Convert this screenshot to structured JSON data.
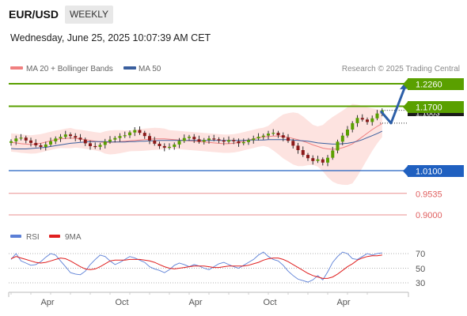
{
  "header": {
    "symbol": "EUR/USD",
    "timeframe": "WEEKLY",
    "datetime": "Wednesday, June 25, 2025 10:07:39 AM CET"
  },
  "price_panel": {
    "legend": [
      {
        "label": "MA 20 + Bollinger Bands",
        "color": "#f08080"
      },
      {
        "label": "MA 50",
        "color": "#3a5f9e"
      }
    ],
    "credit": "Research © 2025 Trading Central",
    "levels": [
      {
        "value": 1.226,
        "label": "1.2260",
        "color": "#5aa000",
        "style": "box"
      },
      {
        "value": 1.17,
        "label": "1.1700",
        "color": "#5aa000",
        "style": "box"
      },
      {
        "value": 1.01,
        "label": "1.0100",
        "color": "#2060c0",
        "style": "box"
      },
      {
        "value": 0.9535,
        "label": "0.9535",
        "color": "#e06060",
        "style": "text"
      },
      {
        "value": 0.9,
        "label": "0.9000",
        "color": "#e06060",
        "style": "text"
      }
    ],
    "current_price_label": "1.1603",
    "projection_color": "#2d5fa8"
  },
  "rsi_panel": {
    "legend": [
      {
        "label": "RSI",
        "color": "#5b7fd6"
      },
      {
        "label": "9MA",
        "color": "#e02020"
      }
    ],
    "ticks": [
      "70",
      "50",
      "30"
    ]
  },
  "x_axis": {
    "labels": [
      "Apr",
      "Oct",
      "Apr",
      "Oct",
      "Apr"
    ]
  },
  "colors": {
    "bull": "#5aa000",
    "bear": "#8b1a1a",
    "band_fill": "#fde3e0"
  },
  "chart_data": [
    {
      "type": "candlestick",
      "title": "EUR/USD",
      "xlabel": "",
      "ylabel": "",
      "x_tick_labels": [
        "Apr",
        "Oct",
        "Apr",
        "Oct",
        "Apr"
      ],
      "series": [
        {
          "name": "MA 20 + Bollinger Bands",
          "values": [
            1.08,
            1.079,
            1.077,
            1.076,
            1.075,
            1.076,
            1.078,
            1.081,
            1.084,
            1.087,
            1.089,
            1.09,
            1.091,
            1.09,
            1.089,
            1.087,
            1.085,
            1.083,
            1.081,
            1.08,
            1.08,
            1.081,
            1.082,
            1.083,
            1.084,
            1.085,
            1.086,
            1.087,
            1.088,
            1.089,
            1.089,
            1.089,
            1.088,
            1.087,
            1.086,
            1.085,
            1.084,
            1.083,
            1.082,
            1.081,
            1.08,
            1.079,
            1.078,
            1.077,
            1.077,
            1.078,
            1.08,
            1.083,
            1.086,
            1.089,
            1.092,
            1.094,
            1.095,
            1.096,
            1.096,
            1.095,
            1.093,
            1.09,
            1.087,
            1.083,
            1.079,
            1.074,
            1.07,
            1.066,
            1.064,
            1.063,
            1.064,
            1.067,
            1.071,
            1.077,
            1.085,
            1.094,
            1.103,
            1.112,
            1.12,
            1.127
          ]
        },
        {
          "name": "MA 50",
          "values": [
            1.065,
            1.064,
            1.064,
            1.064,
            1.065,
            1.066,
            1.067,
            1.068,
            1.07,
            1.072,
            1.074,
            1.076,
            1.078,
            1.079,
            1.08,
            1.081,
            1.082,
            1.082,
            1.082,
            1.082,
            1.081,
            1.081,
            1.081,
            1.081,
            1.082,
            1.082,
            1.083,
            1.083,
            1.084,
            1.084,
            1.085,
            1.085,
            1.085,
            1.085,
            1.085,
            1.085,
            1.085,
            1.085,
            1.085,
            1.085,
            1.085,
            1.085,
            1.085,
            1.085,
            1.085,
            1.085,
            1.085,
            1.085,
            1.086,
            1.086,
            1.086,
            1.086,
            1.087,
            1.087,
            1.087,
            1.087,
            1.087,
            1.086,
            1.085,
            1.084,
            1.083,
            1.081,
            1.079,
            1.078,
            1.077,
            1.076,
            1.076,
            1.077,
            1.078,
            1.08,
            1.083,
            1.087,
            1.092,
            1.097,
            1.102,
            1.108
          ]
        }
      ],
      "close": [
        1.083,
        1.09,
        1.092,
        1.085,
        1.079,
        1.073,
        1.069,
        1.075,
        1.083,
        1.09,
        1.094,
        1.1,
        1.096,
        1.092,
        1.087,
        1.078,
        1.071,
        1.069,
        1.074,
        1.082,
        1.087,
        1.091,
        1.096,
        1.098,
        1.105,
        1.111,
        1.104,
        1.096,
        1.085,
        1.077,
        1.071,
        1.067,
        1.069,
        1.075,
        1.084,
        1.091,
        1.094,
        1.088,
        1.082,
        1.086,
        1.09,
        1.088,
        1.085,
        1.082,
        1.086,
        1.083,
        1.078,
        1.081,
        1.086,
        1.09,
        1.094,
        1.097,
        1.102,
        1.104,
        1.098,
        1.092,
        1.084,
        1.072,
        1.061,
        1.049,
        1.041,
        1.034,
        1.038,
        1.03,
        1.042,
        1.06,
        1.082,
        1.097,
        1.112,
        1.128,
        1.141,
        1.137,
        1.131,
        1.14,
        1.152,
        1.16
      ],
      "ylim": [
        0.88,
        1.245
      ]
    },
    {
      "type": "line",
      "title": "RSI",
      "xlabel": "",
      "ylabel": "",
      "series": [
        {
          "name": "RSI",
          "values": [
            62,
            70,
            60,
            57,
            54,
            55,
            59,
            65,
            70,
            68,
            60,
            52,
            44,
            42,
            41,
            46,
            55,
            62,
            68,
            66,
            60,
            55,
            58,
            62,
            66,
            64,
            61,
            58,
            52,
            49,
            47,
            44,
            48,
            54,
            57,
            55,
            52,
            55,
            53,
            50,
            48,
            52,
            56,
            58,
            55,
            52,
            50,
            54,
            58,
            62,
            68,
            72,
            66,
            62,
            60,
            54,
            46,
            40,
            35,
            33,
            31,
            34,
            40,
            34,
            45,
            58,
            66,
            72,
            70,
            63,
            62,
            66,
            70,
            68,
            70,
            71
          ]
        },
        {
          "name": "9MA",
          "values": [
            63,
            66,
            64,
            62,
            60,
            58,
            57,
            58,
            60,
            62,
            64,
            63,
            60,
            56,
            52,
            49,
            48,
            49,
            52,
            56,
            60,
            61,
            61,
            61,
            62,
            62,
            62,
            61,
            60,
            58,
            55,
            52,
            50,
            49,
            50,
            51,
            52,
            53,
            53,
            53,
            52,
            51,
            51,
            52,
            53,
            53,
            53,
            53,
            54,
            56,
            58,
            61,
            63,
            64,
            64,
            62,
            59,
            55,
            51,
            47,
            43,
            40,
            38,
            36,
            36,
            38,
            42,
            47,
            52,
            56,
            61,
            64,
            66,
            67,
            67,
            68
          ]
        }
      ],
      "yticks": [
        70,
        50,
        30
      ],
      "ylim": [
        20,
        85
      ]
    }
  ]
}
